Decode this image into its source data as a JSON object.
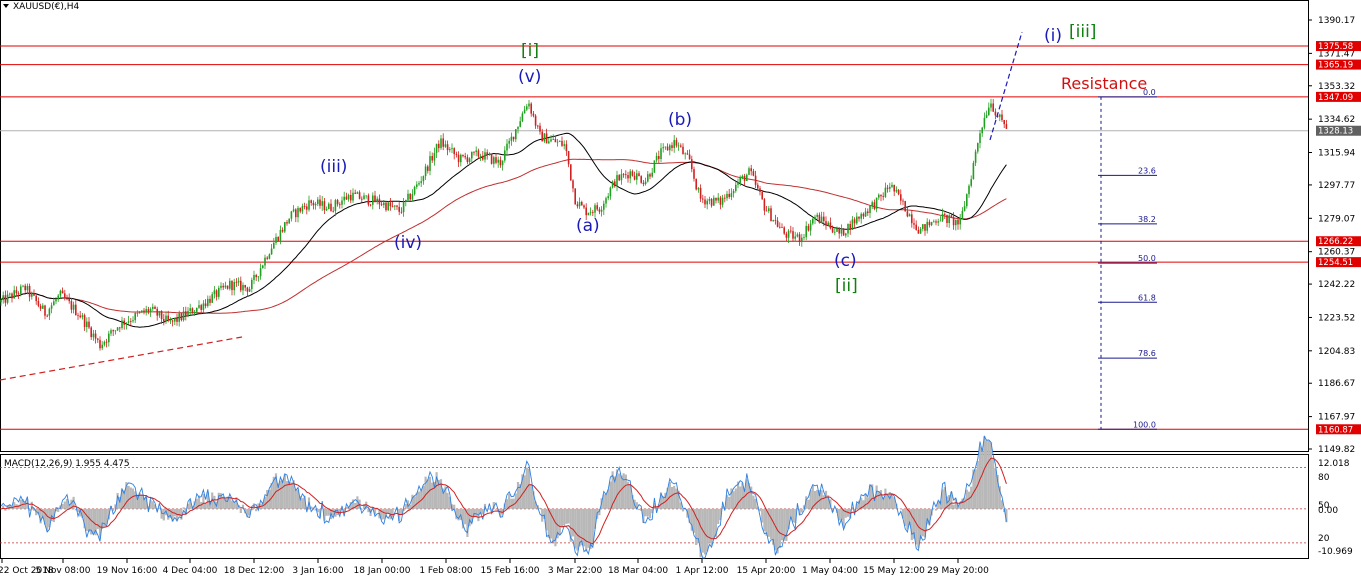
{
  "title": "XAUUSD(€),H4",
  "price_axis_labels": [
    "1390.17",
    "1371.47",
    "1353.32",
    "1334.62",
    "1315.94",
    "1297.77",
    "1279.07",
    "1260.37",
    "1242.22",
    "1223.52",
    "1204.83",
    "1186.67",
    "1167.97",
    "1149.82"
  ],
  "price_tags": [
    {
      "label": "1375.58",
      "value": 1375.58,
      "color": "#e00000"
    },
    {
      "label": "1365.19",
      "value": 1365.19,
      "color": "#e00000"
    },
    {
      "label": "1347.09",
      "value": 1347.09,
      "color": "#e00000"
    },
    {
      "label": "1328.13",
      "value": 1328.13,
      "color": "#606060"
    },
    {
      "label": "1266.22",
      "value": 1266.22,
      "color": "#e00000"
    },
    {
      "label": "1254.51",
      "value": 1254.51,
      "color": "#e00000"
    },
    {
      "label": "1160.87",
      "value": 1160.87,
      "color": "#e00000"
    }
  ],
  "time_axis_labels": [
    "22 Oct 2018",
    "5 Nov 08:00",
    "19 Nov 16:00",
    "4 Dec 04:00",
    "18 Dec 12:00",
    "3 Jan 16:00",
    "18 Jan 00:00",
    "1 Feb 08:00",
    "15 Feb 16:00",
    "3 Mar 22:00",
    "18 Mar 04:00",
    "1 Apr 12:00",
    "15 Apr 20:00",
    "1 May 04:00",
    "15 May 12:00",
    "29 May 20:00"
  ],
  "wave_labels": [
    {
      "text": "[i]",
      "color": "green"
    },
    {
      "text": "(v)",
      "color": "blue"
    },
    {
      "text": "(iii)",
      "color": "blue"
    },
    {
      "text": "(iv)",
      "color": "blue"
    },
    {
      "text": "(a)",
      "color": "blue"
    },
    {
      "text": "(b)",
      "color": "blue"
    },
    {
      "text": "(c)",
      "color": "blue"
    },
    {
      "text": "[ii]",
      "color": "green"
    },
    {
      "text": "(i)",
      "color": "blue"
    },
    {
      "text": "[iii]",
      "color": "green"
    }
  ],
  "resistance_label": "Resistance",
  "fib_levels": [
    "0.0",
    "23.6",
    "38.2",
    "50.0",
    "61.8",
    "78.6",
    "100.0"
  ],
  "macd_label": "MACD(12,26,9) 1.955 4.475",
  "macd_axis_labels": [
    "12.018",
    "80",
    "50",
    "0.00",
    "20",
    "-10.969"
  ],
  "chart_data": {
    "type": "candlestick",
    "symbol": "XAUUSD(€)",
    "timeframe": "H4",
    "ylim": [
      1149.82,
      1390.17
    ],
    "horizontal_levels": [
      1375.58,
      1365.19,
      1347.09,
      1266.22,
      1254.51,
      1160.87
    ],
    "current_price": 1328.13,
    "price_path": [
      {
        "x": "22 Oct 2018",
        "y": 1232
      },
      {
        "x": "5 Nov 08:00",
        "y": 1208
      },
      {
        "x": "19 Nov 16:00",
        "y": 1226
      },
      {
        "x": "4 Dec 04:00",
        "y": 1238
      },
      {
        "x": "18 Dec 12:00",
        "y": 1262
      },
      {
        "x": "3 Jan 16:00",
        "y": 1290
      },
      {
        "x": "18 Jan 00:00",
        "y": 1281
      },
      {
        "x": "1 Feb 08:00",
        "y": 1320
      },
      {
        "x": "15 Feb 16:00",
        "y": 1345
      },
      {
        "x": "3 Mar 22:00",
        "y": 1283
      },
      {
        "x": "18 Mar 04:00",
        "y": 1322
      },
      {
        "x": "1 Apr 12:00",
        "y": 1290
      },
      {
        "x": "15 Apr 20:00",
        "y": 1268
      },
      {
        "x": "1 May 04:00",
        "y": 1272
      },
      {
        "x": "15 May 12:00",
        "y": 1280
      },
      {
        "x": "29 May 20:00",
        "y": 1340
      }
    ],
    "macd": {
      "main": 1.955,
      "signal": 4.475,
      "ylim": [
        -10.969,
        12.018
      ]
    },
    "fibonacci": {
      "high": 1347.09,
      "low": 1160.87,
      "levels": [
        0.0,
        23.6,
        38.2,
        50.0,
        61.8,
        78.6,
        100.0
      ]
    }
  }
}
